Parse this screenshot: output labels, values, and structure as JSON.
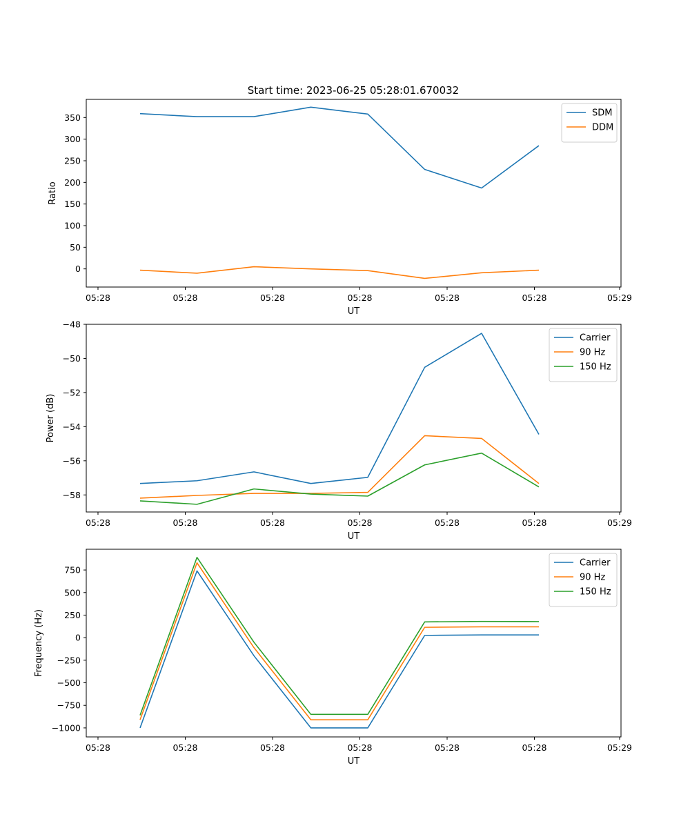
{
  "title": "Start time: 2023-06-25 05:28:01.670032",
  "chart_data": [
    {
      "type": "line",
      "xlabel": "UT",
      "ylabel": "Ratio",
      "xtick_labels": [
        "05:28",
        "05:28",
        "05:28",
        "05:28",
        "05:28",
        "05:28",
        "05:29"
      ],
      "ylim": [
        -42,
        392
      ],
      "yticks": [
        0,
        50,
        100,
        150,
        200,
        250,
        300,
        350
      ],
      "ytick_labels": [
        "0",
        "50",
        "100",
        "150",
        "200",
        "250",
        "300",
        "350"
      ],
      "legend_position": "top-right",
      "series": [
        {
          "name": "SDM",
          "color": "#1f77b4",
          "values": [
            359,
            352,
            352,
            374,
            358,
            230,
            187,
            285
          ]
        },
        {
          "name": "DDM",
          "color": "#ff7f0e",
          "values": [
            -3,
            -10,
            5,
            0,
            -4,
            -22,
            -9,
            -3
          ]
        }
      ]
    },
    {
      "type": "line",
      "xlabel": "UT",
      "ylabel": "Power (dB)",
      "xtick_labels": [
        "05:28",
        "05:28",
        "05:28",
        "05:28",
        "05:28",
        "05:28",
        "05:29"
      ],
      "ylim": [
        -59.0,
        -48.0
      ],
      "yticks": [
        -58,
        -56,
        -54,
        -52,
        -50,
        -48
      ],
      "ytick_labels": [
        "−58",
        "−56",
        "−54",
        "−52",
        "−50",
        "−48"
      ],
      "legend_position": "top-right",
      "series": [
        {
          "name": "Carrier",
          "color": "#1f77b4",
          "values": [
            -57.33,
            -57.17,
            -56.65,
            -57.33,
            -56.97,
            -50.52,
            -48.53,
            -54.45
          ]
        },
        {
          "name": "90 Hz",
          "color": "#ff7f0e",
          "values": [
            -58.19,
            -58.03,
            -57.91,
            -57.91,
            -57.85,
            -54.53,
            -54.69,
            -57.33
          ]
        },
        {
          "name": "150 Hz",
          "color": "#2ca02c",
          "values": [
            -58.35,
            -58.55,
            -57.65,
            -57.95,
            -58.07,
            -56.24,
            -55.55,
            -57.53
          ]
        }
      ]
    },
    {
      "type": "line",
      "xlabel": "UT",
      "ylabel": "Frequency (Hz)",
      "xtick_labels": [
        "05:28",
        "05:28",
        "05:28",
        "05:28",
        "05:28",
        "05:28",
        "05:29"
      ],
      "ylim": [
        -1100,
        980
      ],
      "yticks": [
        -1000,
        -750,
        -500,
        -250,
        0,
        250,
        500,
        750
      ],
      "ytick_labels": [
        "−1000",
        "−750",
        "−500",
        "−250",
        "0",
        "250",
        "500",
        "750"
      ],
      "legend_position": "top-right",
      "series": [
        {
          "name": "Carrier",
          "color": "#1f77b4",
          "values": [
            -1000,
            740,
            -200,
            -1000,
            -1000,
            25,
            30,
            30
          ]
        },
        {
          "name": "90 Hz",
          "color": "#ff7f0e",
          "values": [
            -910,
            830,
            -110,
            -910,
            -910,
            115,
            120,
            120
          ]
        },
        {
          "name": "150 Hz",
          "color": "#2ca02c",
          "values": [
            -860,
            890,
            -50,
            -850,
            -850,
            175,
            180,
            178
          ]
        }
      ]
    }
  ]
}
